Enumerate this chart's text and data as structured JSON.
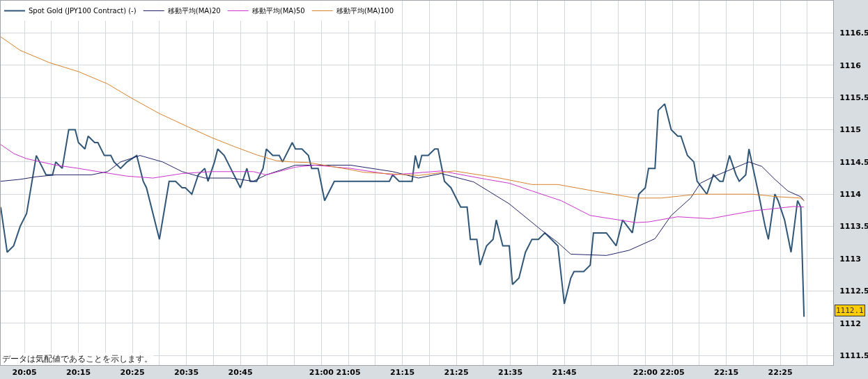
{
  "chart_data": {
    "type": "line",
    "x": [
      20.01,
      20.03,
      20.05,
      20.07,
      20.09,
      20.12,
      20.14,
      20.15,
      20.17,
      20.18,
      20.2,
      20.22,
      20.24,
      20.25,
      20.27,
      20.28,
      20.3,
      20.31,
      20.33,
      20.35,
      20.36,
      20.38,
      20.4,
      20.43,
      20.45,
      20.46,
      20.48,
      20.5,
      20.52,
      20.53,
      20.55,
      20.57,
      20.58,
      20.6,
      20.62,
      20.64,
      20.65,
      20.67,
      20.68,
      20.7,
      20.72,
      20.74,
      20.75,
      20.77,
      20.78,
      20.8,
      20.82,
      20.83,
      20.85,
      20.87,
      20.88,
      20.91,
      20.92,
      20.94,
      20.96,
      20.97,
      20.99,
      21.01,
      21.04,
      21.21,
      21.22,
      21.24,
      21.28,
      21.29,
      21.3,
      21.31,
      21.33,
      21.35,
      21.36,
      21.38,
      21.4,
      21.41,
      21.43,
      21.45,
      21.46,
      21.48,
      21.49,
      21.51,
      21.53,
      21.54,
      21.56,
      21.58,
      21.59,
      21.61,
      21.63,
      21.65,
      21.67,
      21.69,
      21.73,
      21.75,
      21.77,
      21.78,
      21.81,
      21.83,
      21.84,
      21.88,
      21.91,
      21.93,
      21.96,
      21.98,
      22.0,
      22.01,
      22.03,
      22.04,
      22.06,
      22.08,
      22.1,
      22.11,
      22.13,
      22.15,
      22.16,
      22.19,
      22.21,
      22.23,
      22.24,
      22.26,
      22.28,
      22.29,
      22.31,
      22.32,
      22.35,
      22.37,
      22.38,
      22.4,
      22.41,
      22.43,
      22.45,
      22.47,
      22.48,
      22.49
    ],
    "series": [
      {
        "name": "Spot Gold (JPY100 Contract) (-)",
        "color": "#2f5577",
        "values": [
          1113.8,
          1113.1,
          1113.2,
          1113.5,
          1113.7,
          1114.6,
          1114.4,
          1114.3,
          1114.3,
          1114.5,
          1114.4,
          1115.0,
          1115.0,
          1114.8,
          1114.7,
          1114.9,
          1114.8,
          1114.8,
          1114.6,
          1114.6,
          1114.5,
          1114.4,
          1114.5,
          1114.6,
          1114.2,
          1114.1,
          1113.7,
          1113.3,
          1113.9,
          1114.2,
          1114.2,
          1114.1,
          1114.1,
          1114.0,
          1114.3,
          1114.4,
          1114.2,
          1114.5,
          1114.7,
          1114.6,
          1114.4,
          1114.2,
          1114.1,
          1114.4,
          1114.2,
          1114.2,
          1114.4,
          1114.7,
          1114.6,
          1114.6,
          1114.5,
          1114.8,
          1114.7,
          1114.7,
          1114.6,
          1114.4,
          1114.4,
          1113.9,
          1114.2,
          1114.2,
          1114.3,
          1114.2,
          1114.2,
          1114.6,
          1114.4,
          1114.6,
          1114.6,
          1114.7,
          1114.7,
          1114.2,
          1114.1,
          1114.0,
          1113.8,
          1113.8,
          1113.3,
          1113.3,
          1112.9,
          1113.2,
          1113.3,
          1113.6,
          1113.2,
          1113.2,
          1112.6,
          1112.7,
          1113.1,
          1113.3,
          1113.3,
          1113.4,
          1113.2,
          1112.3,
          1112.7,
          1112.8,
          1112.8,
          1112.9,
          1113.4,
          1113.4,
          1113.2,
          1113.6,
          1113.4,
          1114.0,
          1114.1,
          1114.4,
          1114.4,
          1115.3,
          1115.4,
          1115.0,
          1114.9,
          1114.9,
          1114.6,
          1114.5,
          1114.2,
          1114.0,
          1114.3,
          1114.2,
          1114.2,
          1114.6,
          1114.3,
          1114.2,
          1114.3,
          1114.7,
          1114.0,
          1113.5,
          1113.3,
          1114.0,
          1113.9,
          1113.6,
          1113.1,
          1113.9,
          1113.8,
          1112.1
        ]
      },
      {
        "name": "移動平均(MA)20",
        "color": "#1f2366",
        "x": [
          20.01,
          20.07,
          20.12,
          20.18,
          20.29,
          20.34,
          20.38,
          20.44,
          20.51,
          20.57,
          20.64,
          20.72,
          20.79,
          20.83,
          20.92,
          20.98,
          21.09,
          21.22,
          21.3,
          21.37,
          21.47,
          21.58,
          21.68,
          21.73,
          21.77,
          21.88,
          21.95,
          22.03,
          22.08,
          22.14,
          22.17,
          22.21,
          22.32,
          22.36,
          22.4,
          22.44,
          22.48,
          22.49
        ],
        "values": [
          1114.2,
          1114.23,
          1114.27,
          1114.3,
          1114.3,
          1114.35,
          1114.5,
          1114.6,
          1114.5,
          1114.35,
          1114.25,
          1114.25,
          1114.2,
          1114.3,
          1114.45,
          1114.45,
          1114.45,
          1114.35,
          1114.25,
          1114.32,
          1114.19,
          1113.85,
          1113.44,
          1113.25,
          1113.07,
          1113.05,
          1113.13,
          1113.31,
          1113.67,
          1113.94,
          1114.17,
          1114.27,
          1114.5,
          1114.43,
          1114.23,
          1114.05,
          1113.96,
          1113.9
        ]
      },
      {
        "name": "移動平均(MA)50",
        "color": "#cc33cc",
        "x": [
          20.01,
          20.05,
          20.09,
          20.18,
          20.25,
          20.31,
          20.4,
          20.48,
          20.57,
          20.66,
          20.79,
          20.83,
          20.92,
          20.98,
          21.09,
          21.22,
          21.37,
          21.51,
          21.58,
          21.65,
          21.74,
          21.83,
          21.97,
          22.01,
          22.1,
          22.2,
          22.33,
          22.46,
          22.49
        ],
        "values": [
          1114.77,
          1114.63,
          1114.55,
          1114.45,
          1114.4,
          1114.35,
          1114.28,
          1114.25,
          1114.32,
          1114.35,
          1114.35,
          1114.3,
          1114.42,
          1114.45,
          1114.4,
          1114.3,
          1114.36,
          1114.23,
          1114.17,
          1114.05,
          1113.9,
          1113.67,
          1113.56,
          1113.57,
          1113.65,
          1113.62,
          1113.74,
          1113.81,
          1113.8
        ]
      },
      {
        "name": "移動平均(MA)100",
        "color": "#d9822b",
        "x": [
          20.01,
          20.07,
          20.16,
          20.25,
          20.34,
          20.41,
          20.5,
          20.59,
          20.66,
          20.73,
          20.8,
          20.86,
          20.91,
          20.96,
          21.02,
          21.09,
          21.13,
          21.3,
          21.41,
          21.55,
          21.65,
          21.73,
          21.84,
          21.97,
          22.05,
          22.16,
          22.33,
          22.41,
          22.48,
          22.49
        ],
        "values": [
          1116.44,
          1116.23,
          1116.04,
          1115.9,
          1115.71,
          1115.5,
          1115.25,
          1115.04,
          1114.88,
          1114.74,
          1114.61,
          1114.52,
          1114.5,
          1114.49,
          1114.44,
          1114.38,
          1114.34,
          1114.29,
          1114.36,
          1114.25,
          1114.15,
          1114.15,
          1114.05,
          1113.94,
          1113.94,
          1114.0,
          1114.0,
          1113.96,
          1113.94,
          1113.9
        ]
      }
    ],
    "xlim": [
      20.01,
      22.58
    ],
    "xticks": [
      {
        "value": 20.0833,
        "label": "20:05"
      },
      {
        "value": 20.1667,
        "label": null
      },
      {
        "value": 20.25,
        "label": "20:15"
      },
      {
        "value": 20.3333,
        "label": null
      },
      {
        "value": 20.4167,
        "label": "20:25"
      },
      {
        "value": 20.5,
        "label": null
      },
      {
        "value": 20.5833,
        "label": "20:35"
      },
      {
        "value": 20.6667,
        "label": null
      },
      {
        "value": 20.75,
        "label": "20:45"
      },
      {
        "value": 20.8333,
        "label": null
      },
      {
        "value": 20.9167,
        "label": null
      },
      {
        "value": 21,
        "label": "21:00"
      },
      {
        "value": 21.0833,
        "label": "21:05"
      },
      {
        "value": 21.1667,
        "label": null
      },
      {
        "value": 21.25,
        "label": "21:15"
      },
      {
        "value": 21.3333,
        "label": null
      },
      {
        "value": 21.4167,
        "label": "21:25"
      },
      {
        "value": 21.5,
        "label": null
      },
      {
        "value": 21.5833,
        "label": "21:35"
      },
      {
        "value": 21.6667,
        "label": null
      },
      {
        "value": 21.75,
        "label": "21:45"
      },
      {
        "value": 21.8333,
        "label": null
      },
      {
        "value": 21.9167,
        "label": null
      },
      {
        "value": 22,
        "label": "22:00"
      },
      {
        "value": 22.0833,
        "label": "22:05"
      },
      {
        "value": 22.1667,
        "label": null
      },
      {
        "value": 22.25,
        "label": "22:15"
      },
      {
        "value": 22.3333,
        "label": null
      },
      {
        "value": 22.4167,
        "label": "22:25"
      },
      {
        "value": 22.5,
        "label": null
      }
    ],
    "ylim": [
      1111.35,
      1117.0
    ],
    "yticks": [
      1111.5,
      1112,
      1112.5,
      1113,
      1113.5,
      1114,
      1114.5,
      1115,
      1115.5,
      1116,
      1116.5
    ],
    "annotations": [
      "データは気配値であることを示します。",
      "1112.1"
    ],
    "grid": true,
    "legend": "top left",
    "marker": "none",
    "line_style": "solid"
  }
}
